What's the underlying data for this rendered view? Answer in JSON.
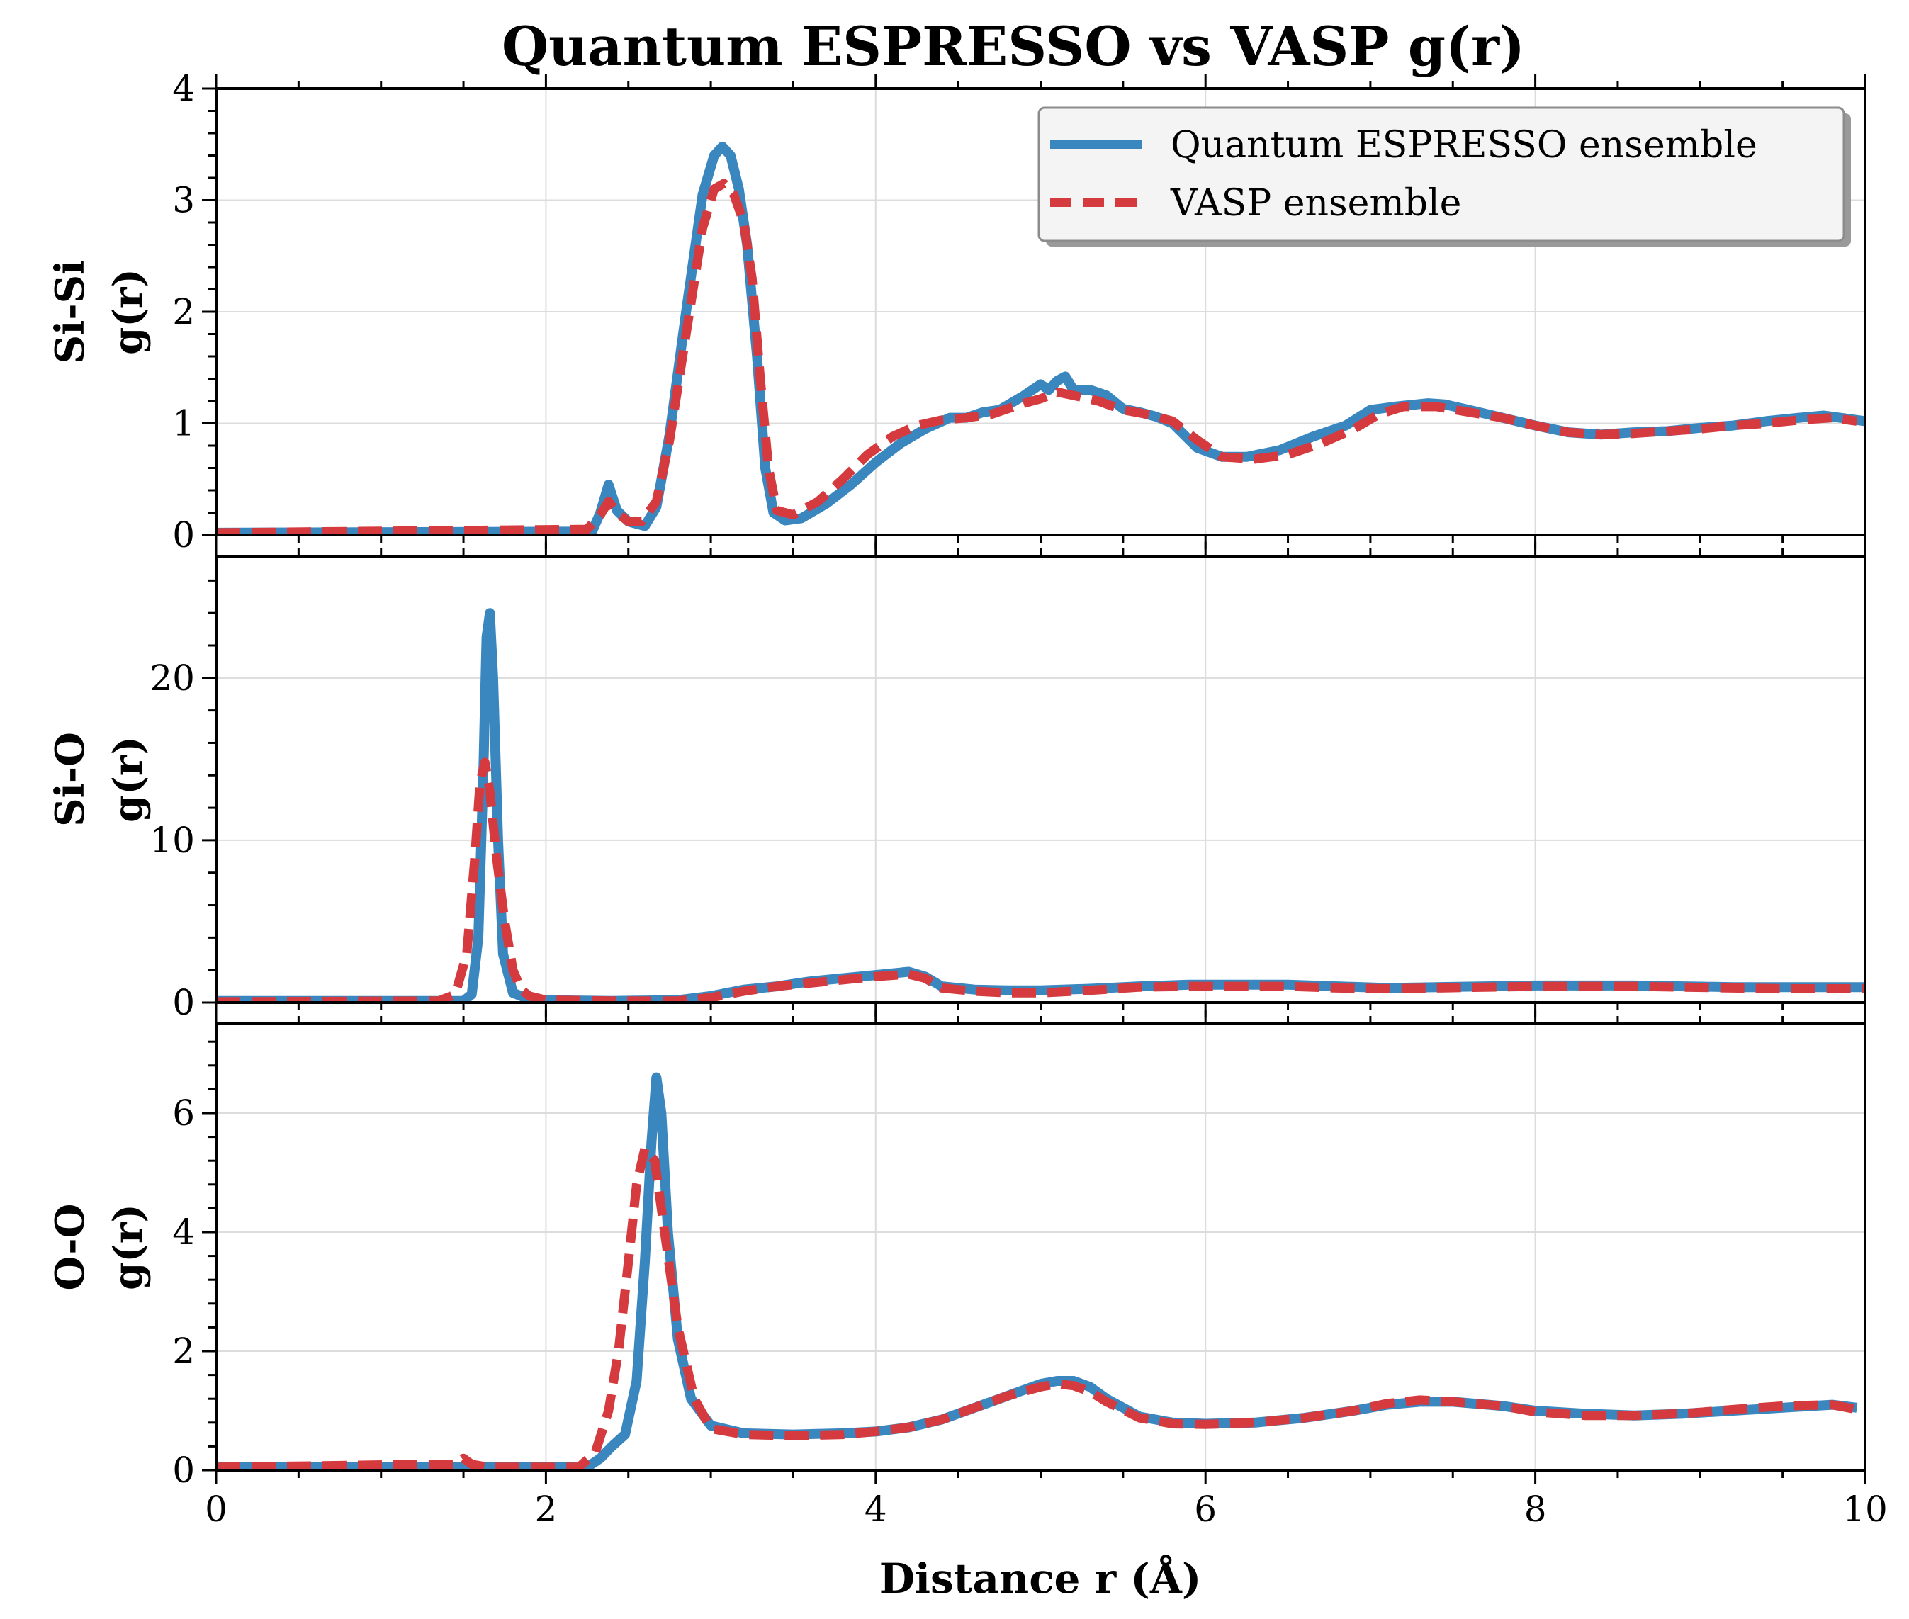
{
  "chart_data": {
    "type": "line",
    "title": "Quantum ESPRESSO vs VASP g(r)",
    "xlabel": "Distance r (Å)",
    "xlim": [
      0,
      10
    ],
    "x_ticks": [
      "0",
      "2",
      "4",
      "6",
      "8",
      "10"
    ],
    "grid": true,
    "legend": {
      "placement": "top-right",
      "entries": [
        "Quantum ESPRESSO ensemble",
        "VASP ensemble"
      ]
    },
    "colors": {
      "qe": "#3a87c0",
      "vasp": "#d53a3f"
    },
    "panels": [
      {
        "name": "si-si",
        "ylabel_line1": "Si-Si",
        "ylabel_line2": "g(r)",
        "ylim": [
          0,
          4
        ],
        "y_ticks": [
          0,
          1,
          2,
          3,
          4
        ],
        "series": [
          {
            "name": "Quantum ESPRESSO ensemble",
            "x": [
              0,
              2.28,
              2.33,
              2.38,
              2.43,
              2.5,
              2.6,
              2.67,
              2.75,
              2.85,
              2.95,
              3.02,
              3.07,
              3.12,
              3.17,
              3.22,
              3.28,
              3.33,
              3.38,
              3.45,
              3.55,
              3.7,
              3.85,
              4.0,
              4.15,
              4.3,
              4.45,
              4.55,
              4.65,
              4.75,
              4.9,
              5.0,
              5.05,
              5.1,
              5.15,
              5.2,
              5.3,
              5.4,
              5.5,
              5.6,
              5.7,
              5.8,
              5.95,
              6.1,
              6.25,
              6.45,
              6.65,
              6.85,
              7.0,
              7.15,
              7.35,
              7.45,
              7.6,
              7.8,
              8.0,
              8.2,
              8.4,
              8.6,
              8.8,
              9.0,
              9.2,
              9.4,
              9.6,
              9.75,
              9.9,
              10.0
            ],
            "y": [
              0.02,
              0.03,
              0.2,
              0.45,
              0.22,
              0.12,
              0.08,
              0.25,
              0.9,
              2.0,
              3.05,
              3.4,
              3.48,
              3.4,
              3.1,
              2.6,
              1.6,
              0.6,
              0.2,
              0.13,
              0.15,
              0.28,
              0.45,
              0.65,
              0.82,
              0.95,
              1.05,
              1.05,
              1.1,
              1.12,
              1.25,
              1.35,
              1.3,
              1.38,
              1.42,
              1.3,
              1.3,
              1.25,
              1.13,
              1.1,
              1.06,
              1.0,
              0.78,
              0.7,
              0.7,
              0.76,
              0.88,
              0.98,
              1.12,
              1.15,
              1.18,
              1.17,
              1.12,
              1.05,
              0.98,
              0.92,
              0.9,
              0.92,
              0.93,
              0.96,
              0.98,
              1.02,
              1.05,
              1.07,
              1.04,
              1.02
            ]
          },
          {
            "name": "VASP ensemble",
            "x": [
              0,
              2.25,
              2.33,
              2.38,
              2.43,
              2.5,
              2.58,
              2.67,
              2.75,
              2.85,
              2.95,
              3.02,
              3.08,
              3.14,
              3.2,
              3.25,
              3.3,
              3.35,
              3.4,
              3.5,
              3.65,
              3.8,
              3.95,
              4.1,
              4.25,
              4.4,
              4.55,
              4.7,
              4.9,
              5.0,
              5.1,
              5.2,
              5.35,
              5.5,
              5.65,
              5.8,
              5.95,
              6.1,
              6.3,
              6.5,
              6.7,
              6.9,
              7.05,
              7.2,
              7.4,
              7.6,
              7.8,
              8.0,
              8.2,
              8.4,
              8.6,
              8.8,
              9.0,
              9.2,
              9.4,
              9.6,
              9.8,
              9.95
            ],
            "y": [
              0.02,
              0.05,
              0.18,
              0.3,
              0.2,
              0.12,
              0.12,
              0.3,
              0.85,
              1.8,
              2.75,
              3.1,
              3.15,
              3.05,
              2.8,
              2.3,
              1.4,
              0.6,
              0.22,
              0.18,
              0.3,
              0.5,
              0.72,
              0.88,
              0.98,
              1.03,
              1.05,
              1.08,
              1.18,
              1.22,
              1.28,
              1.25,
              1.2,
              1.12,
              1.08,
              1.02,
              0.85,
              0.7,
              0.68,
              0.72,
              0.82,
              0.95,
              1.08,
              1.15,
              1.15,
              1.1,
              1.05,
              0.98,
              0.92,
              0.9,
              0.91,
              0.93,
              0.95,
              0.98,
              1.0,
              1.03,
              1.05,
              1.02
            ]
          }
        ]
      },
      {
        "name": "si-o",
        "ylabel_line1": "Si-O",
        "ylabel_line2": "g(r)",
        "ylim": [
          0,
          27.5
        ],
        "y_ticks": [
          0,
          10,
          20
        ],
        "series": [
          {
            "name": "Quantum ESPRESSO ensemble",
            "x": [
              0,
              1.5,
              1.55,
              1.59,
              1.62,
              1.64,
              1.66,
              1.68,
              1.71,
              1.74,
              1.8,
              1.9,
              2.0,
              2.4,
              2.8,
              3.0,
              3.2,
              3.4,
              3.6,
              3.8,
              4.0,
              4.2,
              4.3,
              4.4,
              4.6,
              4.8,
              5.0,
              5.3,
              5.6,
              5.9,
              6.2,
              6.5,
              6.8,
              7.1,
              7.4,
              7.7,
              8.0,
              8.3,
              8.6,
              8.9,
              9.2,
              9.5,
              10.0
            ],
            "y": [
              0.1,
              0.1,
              0.5,
              4.0,
              14.0,
              22.5,
              24.0,
              20.0,
              10.0,
              3.0,
              0.6,
              0.2,
              0.15,
              0.1,
              0.15,
              0.4,
              0.8,
              1.0,
              1.3,
              1.5,
              1.7,
              1.9,
              1.6,
              1.0,
              0.8,
              0.75,
              0.75,
              0.85,
              1.0,
              1.1,
              1.1,
              1.1,
              1.0,
              0.9,
              0.95,
              1.0,
              1.05,
              1.05,
              1.05,
              1.0,
              0.95,
              0.95,
              0.95
            ]
          },
          {
            "name": "VASP ensemble",
            "x": [
              0,
              1.35,
              1.45,
              1.52,
              1.57,
              1.6,
              1.63,
              1.66,
              1.7,
              1.75,
              1.8,
              1.85,
              1.9,
              2.0,
              2.4,
              2.8,
              3.0,
              3.2,
              3.4,
              3.6,
              3.8,
              4.0,
              4.2,
              4.3,
              4.4,
              4.6,
              4.8,
              5.0,
              5.3,
              5.6,
              5.9,
              6.2,
              6.5,
              6.8,
              7.1,
              7.4,
              7.7,
              8.0,
              8.3,
              8.6,
              8.9,
              9.2,
              9.5,
              10.0
            ],
            "y": [
              0.05,
              0.1,
              0.5,
              3.0,
              9.0,
              13.5,
              14.8,
              13.0,
              9.0,
              5.0,
              2.0,
              0.8,
              0.4,
              0.15,
              0.1,
              0.1,
              0.3,
              0.7,
              1.0,
              1.2,
              1.4,
              1.6,
              1.75,
              1.5,
              0.9,
              0.7,
              0.6,
              0.6,
              0.75,
              0.95,
              1.0,
              1.0,
              1.0,
              0.9,
              0.85,
              0.9,
              0.95,
              1.0,
              1.0,
              1.0,
              0.95,
              0.9,
              0.85,
              0.85
            ]
          }
        ]
      },
      {
        "name": "o-o",
        "ylabel_line1": "O-O",
        "ylabel_line2": "g(r)",
        "ylim": [
          0,
          7.5
        ],
        "y_ticks": [
          0,
          2,
          4,
          6
        ],
        "series": [
          {
            "name": "Quantum ESPRESSO ensemble",
            "x": [
              0,
              1.4,
              1.55,
              2.25,
              2.33,
              2.4,
              2.48,
              2.55,
              2.6,
              2.64,
              2.67,
              2.7,
              2.74,
              2.8,
              2.88,
              3.0,
              3.2,
              3.5,
              3.8,
              4.0,
              4.2,
              4.4,
              4.6,
              4.8,
              5.0,
              5.1,
              5.2,
              5.3,
              5.4,
              5.6,
              5.8,
              6.0,
              6.3,
              6.6,
              6.9,
              7.1,
              7.3,
              7.5,
              7.8,
              8.0,
              8.3,
              8.6,
              8.9,
              9.2,
              9.5,
              9.8,
              9.95
            ],
            "y": [
              0.05,
              0.05,
              0.05,
              0.05,
              0.2,
              0.4,
              0.6,
              1.5,
              3.5,
              5.5,
              6.6,
              6.0,
              4.0,
              2.2,
              1.2,
              0.75,
              0.62,
              0.6,
              0.62,
              0.65,
              0.72,
              0.85,
              1.05,
              1.25,
              1.45,
              1.5,
              1.5,
              1.4,
              1.2,
              0.9,
              0.8,
              0.78,
              0.8,
              0.88,
              1.0,
              1.1,
              1.15,
              1.15,
              1.08,
              1.0,
              0.95,
              0.92,
              0.95,
              1.0,
              1.05,
              1.1,
              1.05
            ]
          },
          {
            "name": "VASP ensemble",
            "x": [
              0,
              1.3,
              1.45,
              1.5,
              1.55,
              1.65,
              2.2,
              2.3,
              2.38,
              2.44,
              2.5,
              2.55,
              2.6,
              2.66,
              2.72,
              2.8,
              2.9,
              3.0,
              3.2,
              3.5,
              3.8,
              4.0,
              4.2,
              4.4,
              4.6,
              4.8,
              5.0,
              5.1,
              5.2,
              5.3,
              5.4,
              5.6,
              5.8,
              6.0,
              6.3,
              6.6,
              6.9,
              7.1,
              7.3,
              7.5,
              7.8,
              8.0,
              8.3,
              8.6,
              8.9,
              9.2,
              9.5,
              9.8,
              9.95
            ],
            "y": [
              0.05,
              0.1,
              0.1,
              0.2,
              0.1,
              0.05,
              0.05,
              0.3,
              1.0,
              2.0,
              3.5,
              4.8,
              5.4,
              5.2,
              4.0,
              2.4,
              1.2,
              0.7,
              0.6,
              0.58,
              0.6,
              0.65,
              0.72,
              0.85,
              1.05,
              1.25,
              1.4,
              1.45,
              1.42,
              1.32,
              1.15,
              0.88,
              0.78,
              0.77,
              0.8,
              0.88,
              1.0,
              1.12,
              1.18,
              1.15,
              1.08,
              0.98,
              0.92,
              0.92,
              0.95,
              1.02,
              1.08,
              1.1,
              1.02
            ]
          }
        ]
      }
    ]
  }
}
